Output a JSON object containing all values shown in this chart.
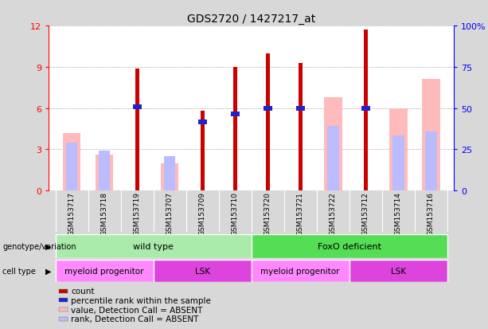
{
  "title": "GDS2720 / 1427217_at",
  "samples": [
    "GSM153717",
    "GSM153718",
    "GSM153719",
    "GSM153707",
    "GSM153709",
    "GSM153710",
    "GSM153720",
    "GSM153721",
    "GSM153722",
    "GSM153712",
    "GSM153714",
    "GSM153716"
  ],
  "count_values": [
    0,
    0,
    8.9,
    0,
    5.8,
    9.0,
    10.0,
    9.3,
    0,
    11.7,
    0,
    0
  ],
  "rank_values": [
    0,
    0,
    6.1,
    0,
    5.0,
    5.6,
    6.0,
    6.0,
    0,
    6.0,
    0,
    0
  ],
  "absent_value": [
    4.2,
    2.6,
    0,
    2.0,
    0,
    0,
    0,
    0,
    6.8,
    0,
    6.0,
    8.1
  ],
  "absent_rank": [
    3.5,
    2.9,
    0,
    2.5,
    0,
    0,
    0,
    0,
    4.7,
    0,
    4.0,
    4.3
  ],
  "ylim_left": [
    0,
    12
  ],
  "ylim_right": [
    0,
    100
  ],
  "yticks_left": [
    0,
    3,
    6,
    9,
    12
  ],
  "yticks_right": [
    0,
    25,
    50,
    75,
    100
  ],
  "yticklabels_right": [
    "0",
    "25",
    "50",
    "75",
    "100%"
  ],
  "color_count": "#cc0000",
  "color_rank": "#2222cc",
  "color_absent_value": "#ffbbbb",
  "color_absent_rank": "#bbbbff",
  "groups": [
    {
      "label": "wild type",
      "start": 0,
      "end": 5,
      "color": "#aaeaaa"
    },
    {
      "label": "FoxO deficient",
      "start": 6,
      "end": 11,
      "color": "#55dd55"
    }
  ],
  "cell_types": [
    {
      "label": "myeloid progenitor",
      "start": 0,
      "end": 2,
      "color": "#ff88ff"
    },
    {
      "label": "LSK",
      "start": 3,
      "end": 5,
      "color": "#dd44dd"
    },
    {
      "label": "myeloid progenitor",
      "start": 6,
      "end": 8,
      "color": "#ff88ff"
    },
    {
      "label": "LSK",
      "start": 9,
      "end": 11,
      "color": "#dd44dd"
    }
  ],
  "legend_items": [
    {
      "label": "count",
      "color": "#cc0000"
    },
    {
      "label": "percentile rank within the sample",
      "color": "#2222cc"
    },
    {
      "label": "value, Detection Call = ABSENT",
      "color": "#ffbbbb"
    },
    {
      "label": "rank, Detection Call = ABSENT",
      "color": "#bbbbff"
    }
  ],
  "bg_color": "#d8d8d8",
  "plot_bg": "#ffffff"
}
